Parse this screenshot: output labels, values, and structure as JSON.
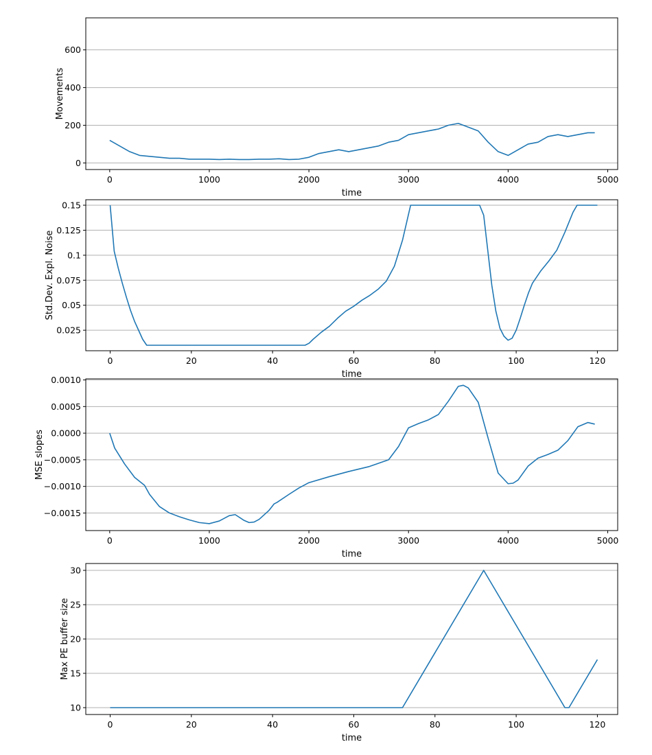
{
  "colors": {
    "line": "#1f77b4",
    "grid": "#b0b0b0",
    "axis": "#000000"
  },
  "chart_data": [
    {
      "type": "line",
      "xlabel": "time",
      "ylabel": "Movements",
      "xlim": [
        -240,
        5100
      ],
      "ylim": [
        -35,
        770
      ],
      "xticks": [
        0,
        1000,
        2000,
        3000,
        4000,
        5000
      ],
      "yticks": [
        0,
        200,
        400,
        600
      ],
      "grid_y": true,
      "x": [
        0,
        100,
        200,
        300,
        400,
        500,
        600,
        700,
        800,
        900,
        1000,
        1100,
        1200,
        1300,
        1400,
        1500,
        1600,
        1700,
        1800,
        1900,
        2000,
        2100,
        2200,
        2300,
        2400,
        2500,
        2600,
        2700,
        2800,
        2900,
        3000,
        3100,
        3200,
        3300,
        3400,
        3500,
        3600,
        3700,
        3800,
        3900,
        4000,
        4100,
        4200,
        4300,
        4400,
        4500,
        4600,
        4700,
        4800,
        4870
      ],
      "series": [
        {
          "values": [
            120,
            90,
            60,
            40,
            35,
            30,
            25,
            25,
            20,
            20,
            20,
            18,
            20,
            18,
            18,
            20,
            20,
            22,
            18,
            20,
            30,
            50,
            60,
            70,
            60,
            70,
            80,
            90,
            110,
            120,
            150,
            160,
            170,
            180,
            200,
            210,
            190,
            170,
            110,
            60,
            40,
            70,
            100,
            110,
            140,
            150,
            140,
            150,
            160,
            160
          ]
        }
      ]
    },
    {
      "type": "line",
      "xlabel": "time",
      "ylabel": "Std.Dev. Expl. Noise",
      "xlim": [
        -6,
        125
      ],
      "ylim": [
        0.0045,
        0.1555
      ],
      "xticks": [
        0,
        20,
        40,
        60,
        80,
        100,
        120
      ],
      "yticks": [
        0.025,
        0.05,
        0.075,
        0.1,
        0.125,
        0.15
      ],
      "grid_y": true,
      "x": [
        0,
        1,
        2,
        3,
        4,
        5,
        6,
        7,
        8,
        9,
        20,
        30,
        40,
        48,
        49,
        50,
        52,
        54,
        56,
        58,
        60,
        62,
        64,
        66,
        68,
        70,
        72,
        74,
        80,
        91,
        92,
        93,
        94,
        95,
        96,
        97,
        98,
        99,
        100,
        101,
        102,
        103,
        104,
        106,
        108,
        110,
        112,
        114,
        115,
        120
      ],
      "series": [
        {
          "values": [
            0.15,
            0.104,
            0.087,
            0.072,
            0.058,
            0.045,
            0.034,
            0.025,
            0.016,
            0.01,
            0.01,
            0.01,
            0.01,
            0.01,
            0.012,
            0.016,
            0.023,
            0.029,
            0.037,
            0.044,
            0.049,
            0.055,
            0.06,
            0.066,
            0.074,
            0.089,
            0.115,
            0.15,
            0.15,
            0.15,
            0.14,
            0.105,
            0.07,
            0.044,
            0.027,
            0.019,
            0.015,
            0.017,
            0.025,
            0.037,
            0.05,
            0.062,
            0.072,
            0.084,
            0.094,
            0.105,
            0.123,
            0.143,
            0.15,
            0.15
          ]
        }
      ]
    },
    {
      "type": "line",
      "xlabel": "time",
      "ylabel": "MSE slopes",
      "xlim": [
        -240,
        5100
      ],
      "ylim": [
        -0.00183,
        0.00102
      ],
      "xticks": [
        0,
        1000,
        2000,
        3000,
        4000,
        5000
      ],
      "yticks": [
        -0.0015,
        -0.001,
        -0.0005,
        0.0,
        0.0005,
        0.001
      ],
      "yticklabels": [
        "−0.0015",
        "−0.0010",
        "−0.0005",
        "0.0000",
        "0.0005",
        "0.0010"
      ],
      "grid_y": true,
      "x": [
        0,
        50,
        150,
        250,
        350,
        400,
        500,
        600,
        700,
        800,
        900,
        1000,
        1100,
        1200,
        1260,
        1350,
        1400,
        1450,
        1500,
        1600,
        1650,
        1680,
        1800,
        1900,
        2000,
        2200,
        2400,
        2600,
        2800,
        2900,
        3000,
        3100,
        3200,
        3300,
        3400,
        3500,
        3550,
        3600,
        3700,
        3800,
        3900,
        4000,
        4050,
        4100,
        4200,
        4300,
        4400,
        4500,
        4600,
        4700,
        4800,
        4870
      ],
      "series": [
        {
          "values": [
            0.0,
            -0.00028,
            -0.00058,
            -0.00083,
            -0.00098,
            -0.00115,
            -0.00138,
            -0.0015,
            -0.00157,
            -0.00163,
            -0.00168,
            -0.0017,
            -0.00165,
            -0.00155,
            -0.00153,
            -0.00164,
            -0.00168,
            -0.00167,
            -0.00162,
            -0.00145,
            -0.00133,
            -0.0013,
            -0.00115,
            -0.00103,
            -0.00093,
            -0.00082,
            -0.00072,
            -0.00063,
            -0.0005,
            -0.00025,
            0.0001,
            0.00018,
            0.00025,
            0.00035,
            0.0006,
            0.00088,
            0.0009,
            0.00085,
            0.00058,
            -0.0001,
            -0.00075,
            -0.00095,
            -0.00094,
            -0.00088,
            -0.00062,
            -0.00047,
            -0.0004,
            -0.00032,
            -0.00014,
            0.00012,
            0.0002,
            0.00017
          ]
        }
      ]
    },
    {
      "type": "line",
      "xlabel": "time",
      "ylabel": "Max PE buffer size",
      "xlim": [
        -6,
        125
      ],
      "ylim": [
        9.0,
        31.0
      ],
      "xticks": [
        0,
        20,
        40,
        60,
        80,
        100,
        120
      ],
      "yticks": [
        10,
        15,
        20,
        25,
        30
      ],
      "grid_y": true,
      "x": [
        0,
        72,
        92,
        112,
        113,
        120
      ],
      "series": [
        {
          "values": [
            10,
            10,
            30,
            10,
            10,
            17
          ]
        }
      ]
    }
  ]
}
